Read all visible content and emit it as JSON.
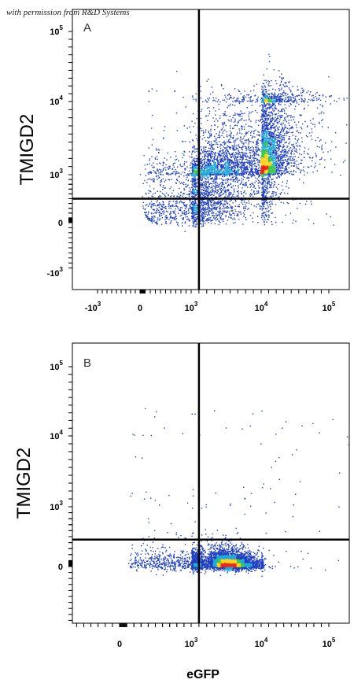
{
  "credit": "with permission from R&D Systems",
  "colors": {
    "low": "#1f3fbf",
    "mid": "#22a8d8",
    "mid2": "#3cc850",
    "high": "#ffd21e",
    "peak": "#e8281c",
    "gate": "#000000"
  },
  "chart_data": [
    {
      "type": "scatter",
      "subtype": "flow-cytometry-density",
      "panel": "A",
      "ylabel": "TMIGD2",
      "xlabel": "",
      "xscale": "biexponential",
      "yscale": "biexponential",
      "x_ticks": [
        {
          "value": -1000,
          "base": "-10",
          "exp": "3"
        },
        {
          "value": 0,
          "base": "0",
          "exp": ""
        },
        {
          "value": 1000,
          "base": "10",
          "exp": "3"
        },
        {
          "value": 10000,
          "base": "10",
          "exp": "4"
        },
        {
          "value": 100000,
          "base": "10",
          "exp": "5"
        }
      ],
      "y_ticks": [
        {
          "value": -1000,
          "base": "-10",
          "exp": "3"
        },
        {
          "value": 0,
          "base": "0",
          "exp": ""
        },
        {
          "value": 1000,
          "base": "10",
          "exp": "3"
        },
        {
          "value": 10000,
          "base": "10",
          "exp": "4"
        },
        {
          "value": 100000,
          "base": "10",
          "exp": "5"
        }
      ],
      "quadrant_gate": {
        "x": 2000,
        "y": 500
      },
      "populations": [
        {
          "x_start": 300,
          "y_start": 220,
          "x_end": 20000,
          "y_end": 3000,
          "count": 2600,
          "spread_along": 0.07,
          "spread_across": 0.09
        },
        {
          "x_start": 4000,
          "y_start": 700,
          "x_end": 50000,
          "y_end": 15000,
          "count": 4200,
          "spread_along": 0.06,
          "spread_across": 0.07
        }
      ]
    },
    {
      "type": "scatter",
      "subtype": "flow-cytometry-density",
      "panel": "B",
      "ylabel": "TMIGD2",
      "xlabel": "eGFP",
      "xscale": "biexponential",
      "yscale": "biexponential",
      "x_ticks": [
        {
          "value": 0,
          "base": "0",
          "exp": ""
        },
        {
          "value": 1000,
          "base": "10",
          "exp": "3"
        },
        {
          "value": 10000,
          "base": "10",
          "exp": "4"
        },
        {
          "value": 100000,
          "base": "10",
          "exp": "5"
        }
      ],
      "y_ticks": [
        {
          "value": 0,
          "base": "0",
          "exp": ""
        },
        {
          "value": 1000,
          "base": "10",
          "exp": "3"
        },
        {
          "value": 10000,
          "base": "10",
          "exp": "4"
        },
        {
          "value": 100000,
          "base": "10",
          "exp": "5"
        }
      ],
      "quadrant_gate": {
        "x": 2000,
        "y": 450
      },
      "populations": [
        {
          "x_start": 300,
          "y_start": 80,
          "x_end": 8000,
          "y_end": 60,
          "count": 1400,
          "spread_along": 0.12,
          "spread_across": 0.055
        },
        {
          "x_start": 4000,
          "y_start": 60,
          "x_end": 9000,
          "y_end": 70,
          "count": 4000,
          "spread_along": 0.08,
          "spread_across": 0.045
        }
      ]
    }
  ]
}
